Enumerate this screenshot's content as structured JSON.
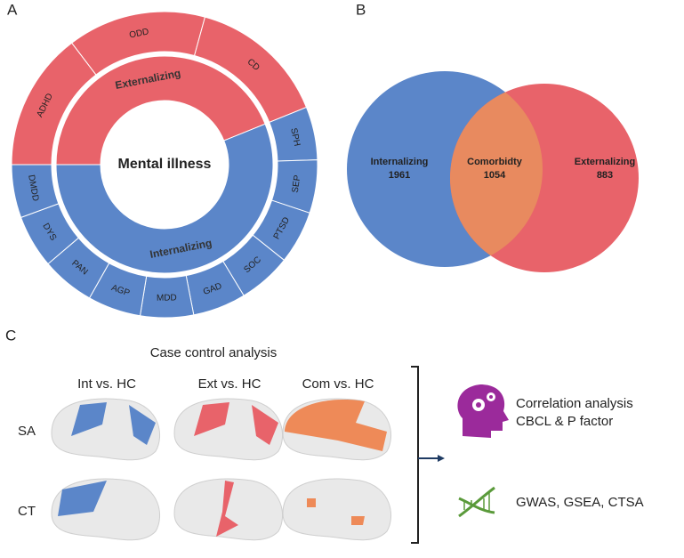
{
  "panel_a": {
    "label": "A",
    "center": "Mental illness",
    "groups": [
      {
        "name": "Externalizing",
        "items": [
          "ADHD",
          "ODD",
          "CD"
        ]
      },
      {
        "name": "Internalizing",
        "items": [
          "SPH",
          "SEP",
          "PTSD",
          "SOC",
          "GAD",
          "MDD",
          "AGP",
          "PAN",
          "DYS",
          "DMDD"
        ]
      }
    ]
  },
  "panel_b": {
    "label": "B",
    "sets": [
      {
        "name": "Internalizing",
        "count": 1961
      },
      {
        "name": "Comorbidty",
        "count": 1054
      },
      {
        "name": "Externalizing",
        "count": 883
      }
    ]
  },
  "panel_c": {
    "label": "C",
    "title": "Case control analysis",
    "columns": [
      "Int vs. HC",
      "Ext vs. HC",
      "Com vs. HC"
    ],
    "rows": [
      "SA",
      "CT"
    ],
    "outputs": [
      {
        "lines": [
          "Correlation analysis",
          "CBCL & P factor"
        ]
      },
      {
        "lines": [
          "GWAS,  GSEA,  CTSA"
        ]
      }
    ]
  }
}
